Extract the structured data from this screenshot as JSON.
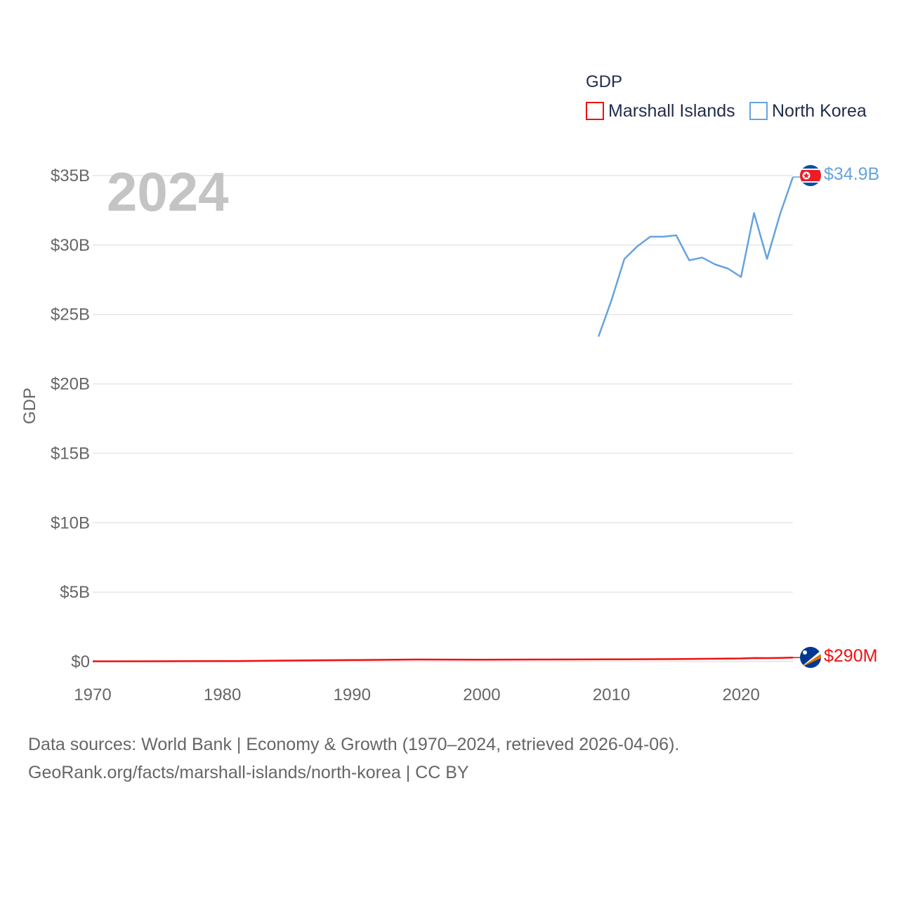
{
  "chart_data": {
    "type": "line",
    "legend_title": "GDP",
    "legend_position": "top-right",
    "ylabel": "GDP",
    "xlabel": "",
    "year_watermark": "2024",
    "xlim": [
      1970,
      2024
    ],
    "ylim": [
      0,
      35000000000
    ],
    "x_ticks": [
      1970,
      1980,
      1990,
      2000,
      2010,
      2020
    ],
    "x_tick_labels": [
      "1970",
      "1980",
      "1990",
      "2000",
      "2010",
      "2020"
    ],
    "y_ticks": [
      0,
      5000000000,
      10000000000,
      15000000000,
      20000000000,
      25000000000,
      30000000000,
      35000000000
    ],
    "y_tick_labels": [
      "$0",
      "$5B",
      "$10B",
      "$15B",
      "$20B",
      "$25B",
      "$30B",
      "$35B"
    ],
    "grid": true,
    "series": [
      {
        "name": "Marshall Islands",
        "color": "#ee1111",
        "end_label": "$290M",
        "flag": "marshall-islands-flag-icon",
        "x": [
          1970,
          1975,
          1980,
          1981,
          1985,
          1990,
          1995,
          2000,
          2005,
          2010,
          2015,
          2020,
          2021,
          2022,
          2023,
          2024
        ],
        "values": [
          20000000,
          25000000,
          35000000,
          40000000,
          75000000,
          110000000,
          150000000,
          140000000,
          150000000,
          160000000,
          180000000,
          230000000,
          260000000,
          255000000,
          270000000,
          290000000
        ]
      },
      {
        "name": "North Korea",
        "color": "#66a3de",
        "end_label": "$34.9B",
        "flag": "north-korea-flag-icon",
        "x": [
          2009,
          2010,
          2011,
          2012,
          2013,
          2014,
          2015,
          2016,
          2017,
          2018,
          2019,
          2020,
          2021,
          2022,
          2023,
          2024
        ],
        "values": [
          23400000000,
          26000000000,
          29000000000,
          29900000000,
          30600000000,
          30600000000,
          30700000000,
          28900000000,
          29100000000,
          28600000000,
          28300000000,
          27700000000,
          32300000000,
          29000000000,
          32200000000,
          34900000000
        ]
      }
    ]
  },
  "footer": {
    "line1": "Data sources: World Bank | Economy & Growth (1970–2024, retrieved 2026-04-06).",
    "line2": "GeoRank.org/facts/marshall-islands/north-korea | CC BY"
  }
}
